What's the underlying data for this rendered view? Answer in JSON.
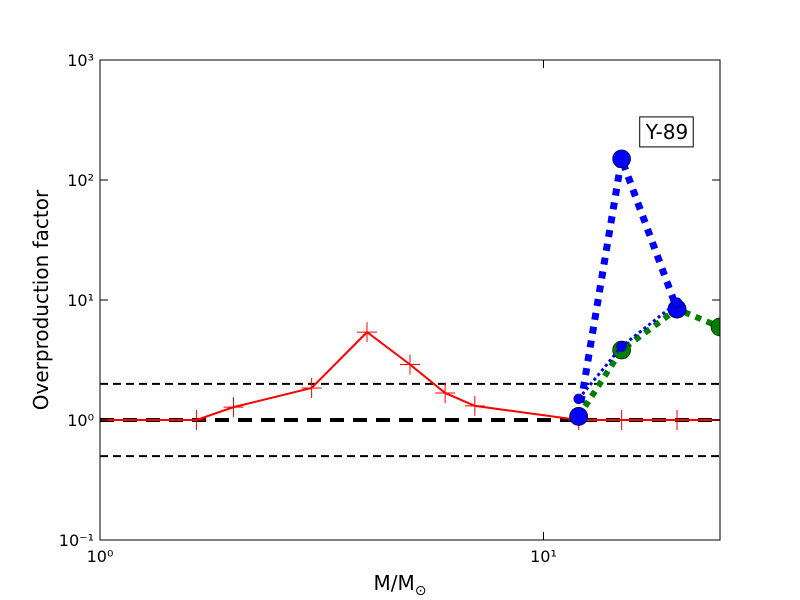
{
  "chart_data": {
    "type": "line",
    "xlabel": "M/M",
    "xlabel_sub": "⊙",
    "ylabel": "Overproduction factor",
    "xscale": "log",
    "yscale": "log",
    "xlim": [
      1,
      25
    ],
    "ylim": [
      0.1,
      1000
    ],
    "xticks": [
      {
        "value": 1,
        "label": "10⁰"
      },
      {
        "value": 10,
        "label": "10¹"
      }
    ],
    "yticks": [
      {
        "value": 0.1,
        "label": "10⁻¹"
      },
      {
        "value": 1,
        "label": "10⁰"
      },
      {
        "value": 10,
        "label": "10¹"
      },
      {
        "value": 100,
        "label": "10²"
      },
      {
        "value": 1000,
        "label": "10³"
      }
    ],
    "hlines": [
      {
        "value": 2,
        "color": "#000000",
        "linestyle": "dashed",
        "linewidth": 2
      },
      {
        "value": 1,
        "color": "#000000",
        "linestyle": "dashed",
        "linewidth": 4
      },
      {
        "value": 0.5,
        "color": "#000000",
        "linestyle": "dashed",
        "linewidth": 2
      }
    ],
    "series": [
      {
        "color": "#ff0000",
        "linestyle": "solid",
        "linewidth": 2,
        "marker": "plus",
        "x": [
          1,
          1.65,
          2,
          3,
          4,
          5,
          6,
          7,
          12,
          15,
          20,
          25
        ],
        "values": [
          1,
          1,
          1.28,
          1.85,
          5.4,
          2.9,
          1.68,
          1.31,
          1,
          1,
          1,
          1
        ]
      },
      {
        "color": "#008000",
        "linestyle": "dotted",
        "linewidth": 6,
        "marker": "circle",
        "x": [
          12,
          15,
          20,
          25
        ],
        "values": [
          1.07,
          3.83,
          8.4,
          5.96
        ]
      },
      {
        "color": "#0000ff",
        "linestyle": "dotted",
        "linewidth": 7,
        "marker": "circle",
        "x": [
          12,
          15,
          20
        ],
        "values": [
          1.07,
          150,
          8.4
        ]
      },
      {
        "color": "#0000ff",
        "linestyle": "dotted",
        "linewidth": 3,
        "marker": "dot",
        "x": [
          12,
          15,
          20
        ],
        "values": [
          1.5,
          4.1,
          9.5
        ]
      }
    ],
    "annotations": [
      {
        "text": "Y-89",
        "x": 17,
        "y": 220
      }
    ]
  }
}
